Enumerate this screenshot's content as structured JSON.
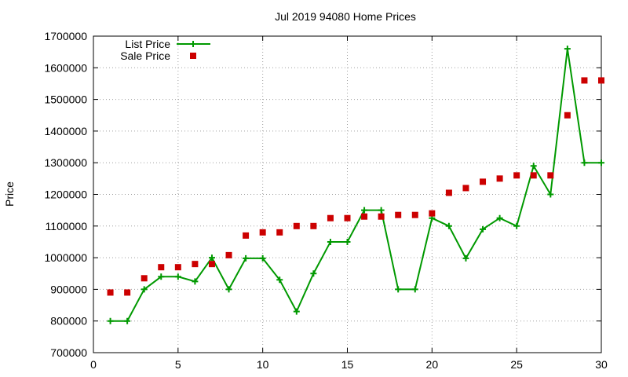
{
  "chart_data": {
    "type": "line",
    "title": "Jul 2019 94080 Home Prices",
    "xlabel": "",
    "ylabel": "Price",
    "xlim": [
      0,
      30
    ],
    "ylim": [
      700000,
      1700000
    ],
    "x_ticks": [
      "0",
      "5",
      "10",
      "15",
      "20",
      "25",
      "30"
    ],
    "y_ticks": [
      "700000",
      "800000",
      "900000",
      "1000000",
      "1100000",
      "1200000",
      "1300000",
      "1400000",
      "1500000",
      "1600000",
      "1700000"
    ],
    "grid": true,
    "legend_position": "top-left",
    "series": [
      {
        "name": "List Price",
        "style": "line+points",
        "color": "#009900",
        "x": [
          1,
          2,
          3,
          4,
          5,
          6,
          7,
          8,
          9,
          10,
          11,
          12,
          13,
          14,
          15,
          16,
          17,
          18,
          19,
          20,
          21,
          22,
          23,
          24,
          25,
          26,
          27,
          28,
          29,
          30
        ],
        "values": [
          800000,
          800000,
          900000,
          940000,
          940000,
          925000,
          1000000,
          900000,
          998000,
          998000,
          930000,
          830000,
          950000,
          1050000,
          1050000,
          1150000,
          1150000,
          900000,
          900000,
          1125000,
          1100000,
          998000,
          1090000,
          1125000,
          1100000,
          1290000,
          1200000,
          1660000,
          1300000,
          1300000
        ]
      },
      {
        "name": "Sale Price",
        "style": "points",
        "color": "#cc0000",
        "x": [
          1,
          2,
          3,
          4,
          5,
          6,
          7,
          8,
          9,
          10,
          11,
          12,
          13,
          14,
          15,
          16,
          17,
          18,
          19,
          20,
          21,
          22,
          23,
          24,
          25,
          26,
          27,
          28,
          29,
          30
        ],
        "values": [
          890000,
          890000,
          935000,
          970000,
          970000,
          980000,
          980000,
          1008000,
          1070000,
          1080000,
          1080000,
          1100000,
          1100000,
          1125000,
          1125000,
          1130000,
          1130000,
          1135000,
          1135000,
          1140000,
          1205000,
          1220000,
          1240000,
          1250000,
          1260000,
          1260000,
          1260000,
          1450000,
          1560000,
          1560000
        ]
      }
    ]
  }
}
